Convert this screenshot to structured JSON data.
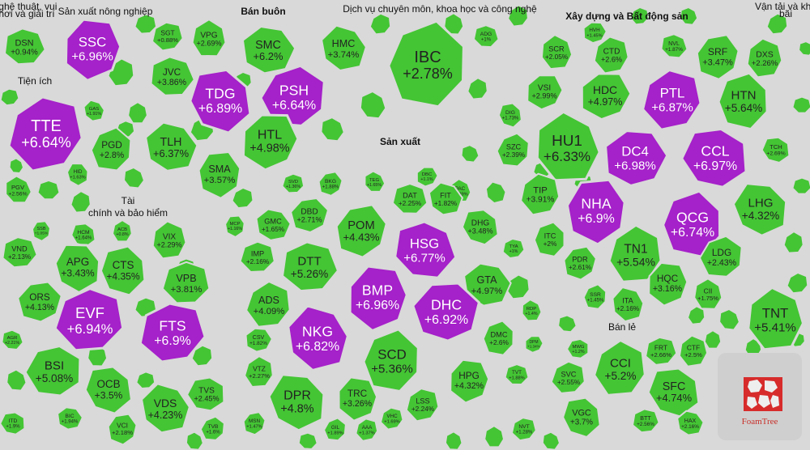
{
  "chart_data": {
    "type": "treemap",
    "groups": [
      {
        "name": "Nghệ thuật, vui chơi và giải trí",
        "label_lines": [
          "Nghệ thuật, vui",
          "chơi và giải trí"
        ]
      },
      {
        "name": "Sản xuất nông nghiệp"
      },
      {
        "name": "Bán buôn"
      },
      {
        "name": "Dịch vụ chuyên môn, khoa học và công nghệ"
      },
      {
        "name": "Xây dựng và Bất động sản"
      },
      {
        "name": "Vận tải và kho bãi",
        "label_lines": [
          "Vận tải và kho",
          "bãi"
        ]
      },
      {
        "name": "Tiện ích"
      },
      {
        "name": "Sản xuất"
      },
      {
        "name": "Tài chính và bảo hiểm",
        "label_lines": [
          "Tài",
          "chính và bảo hiểm"
        ]
      },
      {
        "name": "Bán lẻ"
      }
    ],
    "tiles": [
      {
        "ticker": "DSN",
        "change": "+0.94%"
      },
      {
        "ticker": "SSC",
        "change": "+6.96%"
      },
      {
        "ticker": "SGT",
        "change": "+0.88%"
      },
      {
        "ticker": "VPG",
        "change": "+2.69%"
      },
      {
        "ticker": "JVC",
        "change": "+3.86%"
      },
      {
        "ticker": "SMC",
        "change": "+6.2%"
      },
      {
        "ticker": "HMC",
        "change": "+3.74%"
      },
      {
        "ticker": "TDG",
        "change": "+6.89%"
      },
      {
        "ticker": "PSH",
        "change": "+6.64%"
      },
      {
        "ticker": "TLH",
        "change": "+6.37%"
      },
      {
        "ticker": "HTL",
        "change": "+4.98%"
      },
      {
        "ticker": "SMA",
        "change": "+3.57%"
      },
      {
        "ticker": "IBC",
        "change": "+2.78%"
      },
      {
        "ticker": "ADG",
        "change": "+1%"
      },
      {
        "ticker": "TTE",
        "change": "+6.64%"
      },
      {
        "ticker": "GAS",
        "change": "+1.91%"
      },
      {
        "ticker": "PGD",
        "change": "+2.8%"
      },
      {
        "ticker": "HID",
        "change": "+1.63%"
      },
      {
        "ticker": "PGV",
        "change": "+2.56%"
      },
      {
        "ticker": "SCR",
        "change": "+2.05%"
      },
      {
        "ticker": "HVH",
        "change": "+1.45%"
      },
      {
        "ticker": "CTD",
        "change": "+2.6%"
      },
      {
        "ticker": "NVL",
        "change": "+1.87%"
      },
      {
        "ticker": "SRF",
        "change": "+3.47%"
      },
      {
        "ticker": "DXS",
        "change": "+2.26%"
      },
      {
        "ticker": "VSI",
        "change": "+2.99%"
      },
      {
        "ticker": "HDC",
        "change": "+4.97%"
      },
      {
        "ticker": "PTL",
        "change": "+6.87%"
      },
      {
        "ticker": "HTN",
        "change": "+5.64%"
      },
      {
        "ticker": "DIG",
        "change": "+1.73%"
      },
      {
        "ticker": "HU1",
        "change": "+6.33%"
      },
      {
        "ticker": "DC4",
        "change": "+6.98%"
      },
      {
        "ticker": "CCL",
        "change": "+6.97%"
      },
      {
        "ticker": "SZC",
        "change": "+2.39%"
      },
      {
        "ticker": "TCH",
        "change": "+2.69%"
      },
      {
        "ticker": "TIP",
        "change": "+3.91%"
      },
      {
        "ticker": "NHA",
        "change": "+6.9%"
      },
      {
        "ticker": "LHG",
        "change": "+4.32%"
      },
      {
        "ticker": "QCG",
        "change": "+6.74%"
      },
      {
        "ticker": "ITC",
        "change": "+2%"
      },
      {
        "ticker": "LDG",
        "change": "+2.43%"
      },
      {
        "ticker": "TN1",
        "change": "+5.54%"
      },
      {
        "ticker": "PDR",
        "change": "+2.61%"
      },
      {
        "ticker": "HQC",
        "change": "+3.16%"
      },
      {
        "ticker": "CII",
        "change": "+1.75%"
      },
      {
        "ticker": "SSR",
        "change": "+1.45%"
      },
      {
        "ticker": "ITA",
        "change": "+2.16%"
      },
      {
        "ticker": "TNT",
        "change": "+5.41%"
      },
      {
        "ticker": "MWG",
        "change": "+1.2%"
      },
      {
        "ticker": "FRT",
        "change": "+2.66%"
      },
      {
        "ticker": "CTF",
        "change": "+2.5%"
      },
      {
        "ticker": "CCI",
        "change": "+5.2%"
      },
      {
        "ticker": "SVC",
        "change": "+2.55%"
      },
      {
        "ticker": "SFC",
        "change": "+4.74%"
      },
      {
        "ticker": "VGC",
        "change": "+3.7%"
      },
      {
        "ticker": "BTT",
        "change": "+2.56%"
      },
      {
        "ticker": "HAX",
        "change": "+2.16%"
      },
      {
        "ticker": "SVD",
        "change": "+1.36%"
      },
      {
        "ticker": "BKG",
        "change": "+1.88%"
      },
      {
        "ticker": "TEG",
        "change": "+1.65%"
      },
      {
        "ticker": "DBC",
        "change": "+1.1%"
      },
      {
        "ticker": "PAC",
        "change": "+1.39%"
      },
      {
        "ticker": "GMC",
        "change": "+1.65%"
      },
      {
        "ticker": "DBD",
        "change": "+2.71%"
      },
      {
        "ticker": "DAT",
        "change": "+2.25%"
      },
      {
        "ticker": "FIT",
        "change": "+1.82%"
      },
      {
        "ticker": "MCP",
        "change": "+1.16%"
      },
      {
        "ticker": "POM",
        "change": "+4.43%"
      },
      {
        "ticker": "DHG",
        "change": "+3.48%"
      },
      {
        "ticker": "IMP",
        "change": "+2.16%"
      },
      {
        "ticker": "HSG",
        "change": "+6.77%"
      },
      {
        "ticker": "TYA",
        "change": "+1%"
      },
      {
        "ticker": "DTT",
        "change": "+5.26%"
      },
      {
        "ticker": "GTA",
        "change": "+4.97%"
      },
      {
        "ticker": "ADS",
        "change": "+4.09%"
      },
      {
        "ticker": "BMP",
        "change": "+6.96%"
      },
      {
        "ticker": "RDP",
        "change": "+1.4%"
      },
      {
        "ticker": "DHC",
        "change": "+6.92%"
      },
      {
        "ticker": "CSV",
        "change": "+1.82%"
      },
      {
        "ticker": "NKG",
        "change": "+6.82%"
      },
      {
        "ticker": "DMC",
        "change": "+2.6%"
      },
      {
        "ticker": "DPM",
        "change": "+1.34%"
      },
      {
        "ticker": "VTZ",
        "change": "+2.27%"
      },
      {
        "ticker": "SCD",
        "change": "+5.36%"
      },
      {
        "ticker": "HPG",
        "change": "+4.32%"
      },
      {
        "ticker": "TVT",
        "change": "+1.88%"
      },
      {
        "ticker": "DPR",
        "change": "+4.8%"
      },
      {
        "ticker": "TRC",
        "change": "+3.26%"
      },
      {
        "ticker": "LSS",
        "change": "+2.24%"
      },
      {
        "ticker": "VHC",
        "change": "+1.69%"
      },
      {
        "ticker": "MSN",
        "change": "+1.47%"
      },
      {
        "ticker": "GIL",
        "change": "+1.89%"
      },
      {
        "ticker": "AAA",
        "change": "+1.37%"
      },
      {
        "ticker": "NVT",
        "change": "+1.28%"
      },
      {
        "ticker": "SSB",
        "change": "+1.05%"
      },
      {
        "ticker": "HCM",
        "change": "+1.64%"
      },
      {
        "ticker": "ACB",
        "change": "+0.8%"
      },
      {
        "ticker": "VND",
        "change": "+2.13%"
      },
      {
        "ticker": "APG",
        "change": "+3.43%"
      },
      {
        "ticker": "VIX",
        "change": "+2.29%"
      },
      {
        "ticker": "CTS",
        "change": "+4.35%"
      },
      {
        "ticker": "VPB",
        "change": "+3.81%"
      },
      {
        "ticker": "ORS",
        "change": "+4.13%"
      },
      {
        "ticker": "EVF",
        "change": "+6.94%"
      },
      {
        "ticker": "FTS",
        "change": "+6.9%"
      },
      {
        "ticker": "AGR",
        "change": "+2.21%"
      },
      {
        "ticker": "BSI",
        "change": "+5.08%"
      },
      {
        "ticker": "OCB",
        "change": "+3.5%"
      },
      {
        "ticker": "TVS",
        "change": "+2.45%"
      },
      {
        "ticker": "VDS",
        "change": "+4.23%"
      },
      {
        "ticker": "BIC",
        "change": "+1.94%"
      },
      {
        "ticker": "VCI",
        "change": "+2.18%"
      },
      {
        "ticker": "TVB",
        "change": "+1.6%"
      },
      {
        "ticker": "ITD",
        "change": "+1.9%"
      }
    ],
    "colors": {
      "positive": "#44c534",
      "ceiling": "#a521c9",
      "gap": "#d9d9d9",
      "panel": "#cfcfcf",
      "logo_red": "#d72b2b"
    }
  },
  "logo": {
    "text": "FoamTree"
  }
}
